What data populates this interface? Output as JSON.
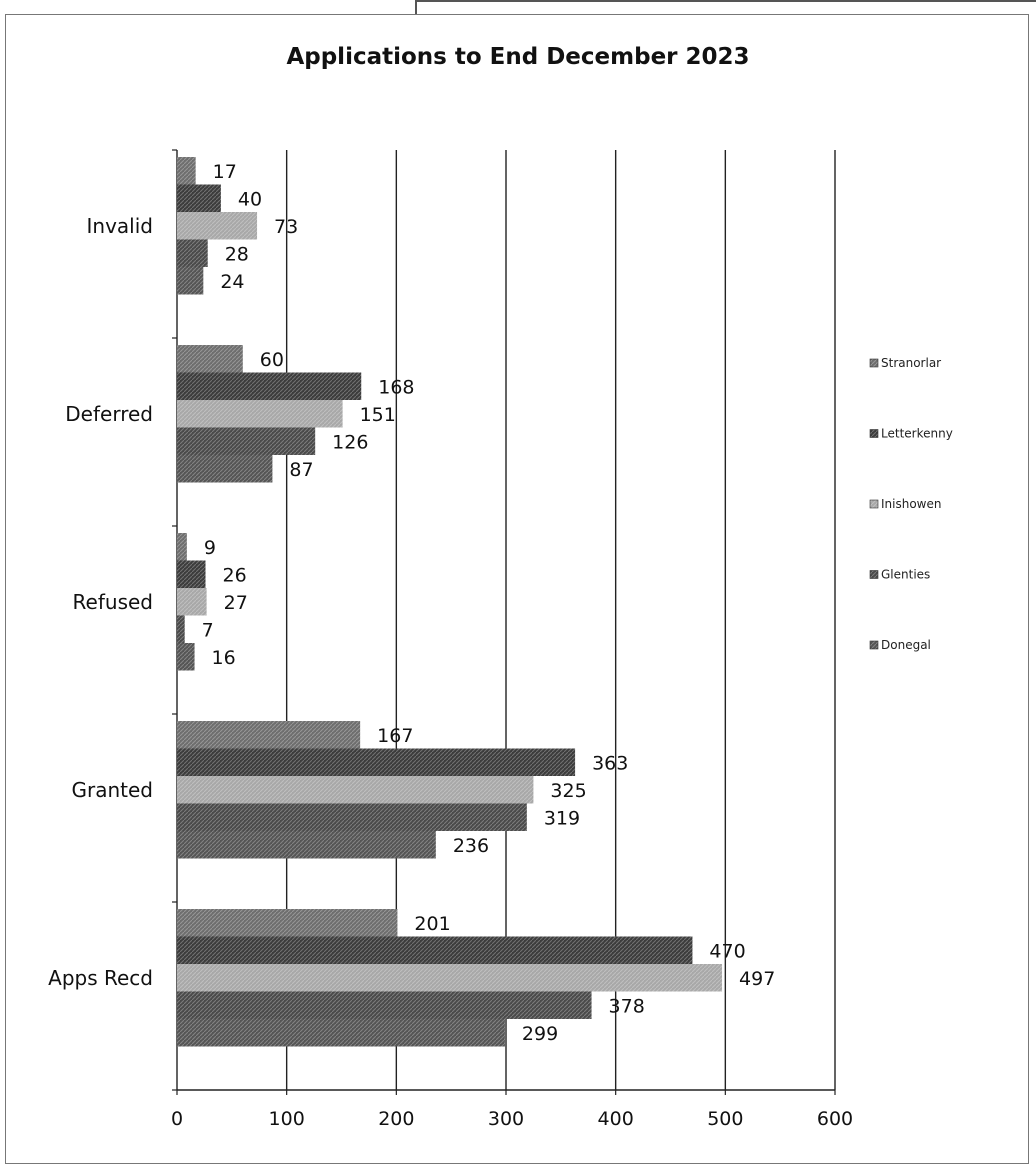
{
  "chart_data": {
    "type": "bar",
    "orientation": "horizontal",
    "title": "Applications to End December 2023",
    "categories": [
      "Invalid",
      "Deferred",
      "Refused",
      "Granted",
      "Apps Recd"
    ],
    "series": [
      {
        "name": "Stranorlar",
        "values": [
          17,
          60,
          9,
          167,
          201
        ],
        "color": "#6e6e6e"
      },
      {
        "name": "Letterkenny",
        "values": [
          40,
          168,
          26,
          363,
          470
        ],
        "color": "#3c3c3c"
      },
      {
        "name": "Inishowen",
        "values": [
          73,
          151,
          27,
          325,
          497
        ],
        "color": "#a8a8a8"
      },
      {
        "name": "Glenties",
        "values": [
          28,
          126,
          7,
          319,
          378
        ],
        "color": "#4a4a4a"
      },
      {
        "name": "Donegal",
        "values": [
          24,
          87,
          16,
          236,
          299
        ],
        "color": "#555555"
      }
    ],
    "xlim": [
      0,
      600
    ],
    "xticks": [
      "0",
      "100",
      "200",
      "300",
      "400",
      "500",
      "600"
    ],
    "grid": true,
    "legend_position": "right"
  }
}
